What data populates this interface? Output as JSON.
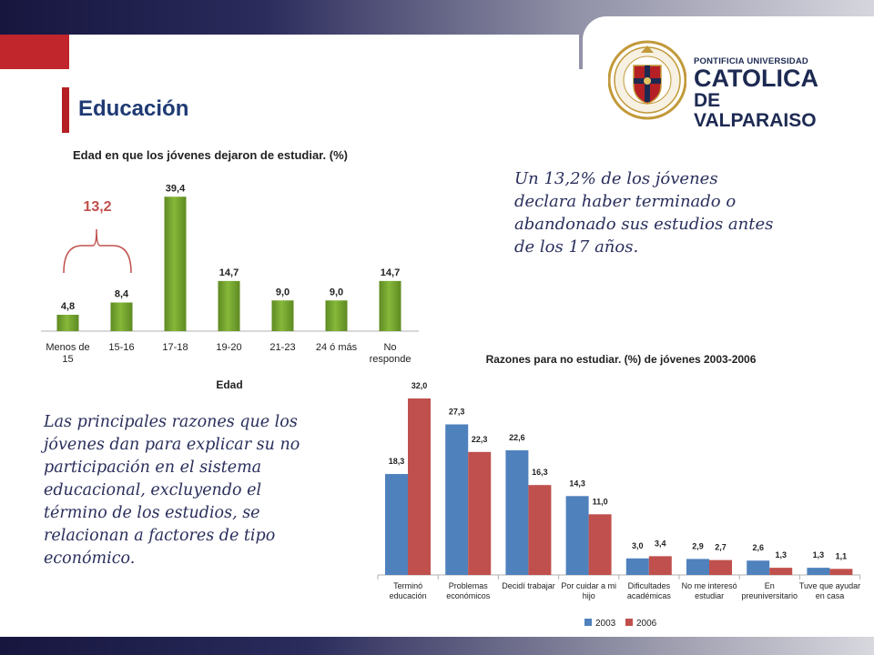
{
  "header": {
    "title": "Educación"
  },
  "logo": {
    "line1": "PONTIFICIA UNIVERSIDAD",
    "line2": "CATOLICA",
    "line3": "DE VALPARAISO"
  },
  "annotation": {
    "value": "13,2"
  },
  "quotes": {
    "top": "Un 13,2% de los jóvenes declara haber terminado o abandonado sus estudios antes de los 17 años.",
    "bottom": "Las principales razones que los jóvenes dan para explicar su no participación en el sistema educacional, excluyendo el término de los estudios, se relacionan a factores de tipo económico."
  },
  "colors": {
    "bar_green": "#86b83a",
    "series_2003": "#4f81bd",
    "series_2006": "#c0504d",
    "accent_red": "#c0262c",
    "title_blue": "#1f3a74"
  },
  "chart_data": [
    {
      "type": "bar",
      "title": "Edad en que los jóvenes dejaron de estudiar. (%)",
      "xlabel": "Edad",
      "ylabel": "",
      "categories": [
        [
          "Menos de",
          "15"
        ],
        [
          "15-16"
        ],
        [
          "17-18"
        ],
        [
          "19-20"
        ],
        [
          "21-23"
        ],
        [
          "24 ó más"
        ],
        [
          "No",
          "responde"
        ]
      ],
      "values": [
        4.8,
        8.4,
        39.4,
        14.7,
        9.0,
        9.0,
        14.7
      ],
      "labels": [
        "4,8",
        "8,4",
        "39,4",
        "14,7",
        "9,0",
        "9,0",
        "14,7"
      ],
      "ylim": [
        0,
        40
      ]
    },
    {
      "type": "bar",
      "title": "Razones para no estudiar. (%) de jóvenes 2003-2006",
      "xlabel": "",
      "ylabel": "",
      "legend": "bottom",
      "categories": [
        [
          "Terminó",
          "educación"
        ],
        [
          "Problemas",
          "económicos"
        ],
        [
          "Decidí trabajar"
        ],
        [
          "Por cuidar a mi",
          "hijo"
        ],
        [
          "Dificultades",
          "académicas"
        ],
        [
          "No me interesó",
          "estudiar"
        ],
        [
          "En",
          "preuniversitario"
        ],
        [
          "Tuve que ayudar",
          "en casa"
        ]
      ],
      "series": [
        {
          "name": "2003",
          "values": [
            18.3,
            27.3,
            22.6,
            14.3,
            3.0,
            2.9,
            2.6,
            1.3
          ],
          "labels": [
            "18,3",
            "27,3",
            "22,6",
            "14,3",
            "3,0",
            "2,9",
            "2,6",
            "1,3"
          ]
        },
        {
          "name": "2006",
          "values": [
            32.0,
            22.3,
            16.3,
            11.0,
            3.4,
            2.7,
            1.3,
            1.1
          ],
          "labels": [
            "32,0",
            "22,3",
            "16,3",
            "11,0",
            "3,4",
            "2,7",
            "1,3",
            "1,1"
          ]
        }
      ],
      "ylim": [
        0,
        32
      ]
    }
  ]
}
